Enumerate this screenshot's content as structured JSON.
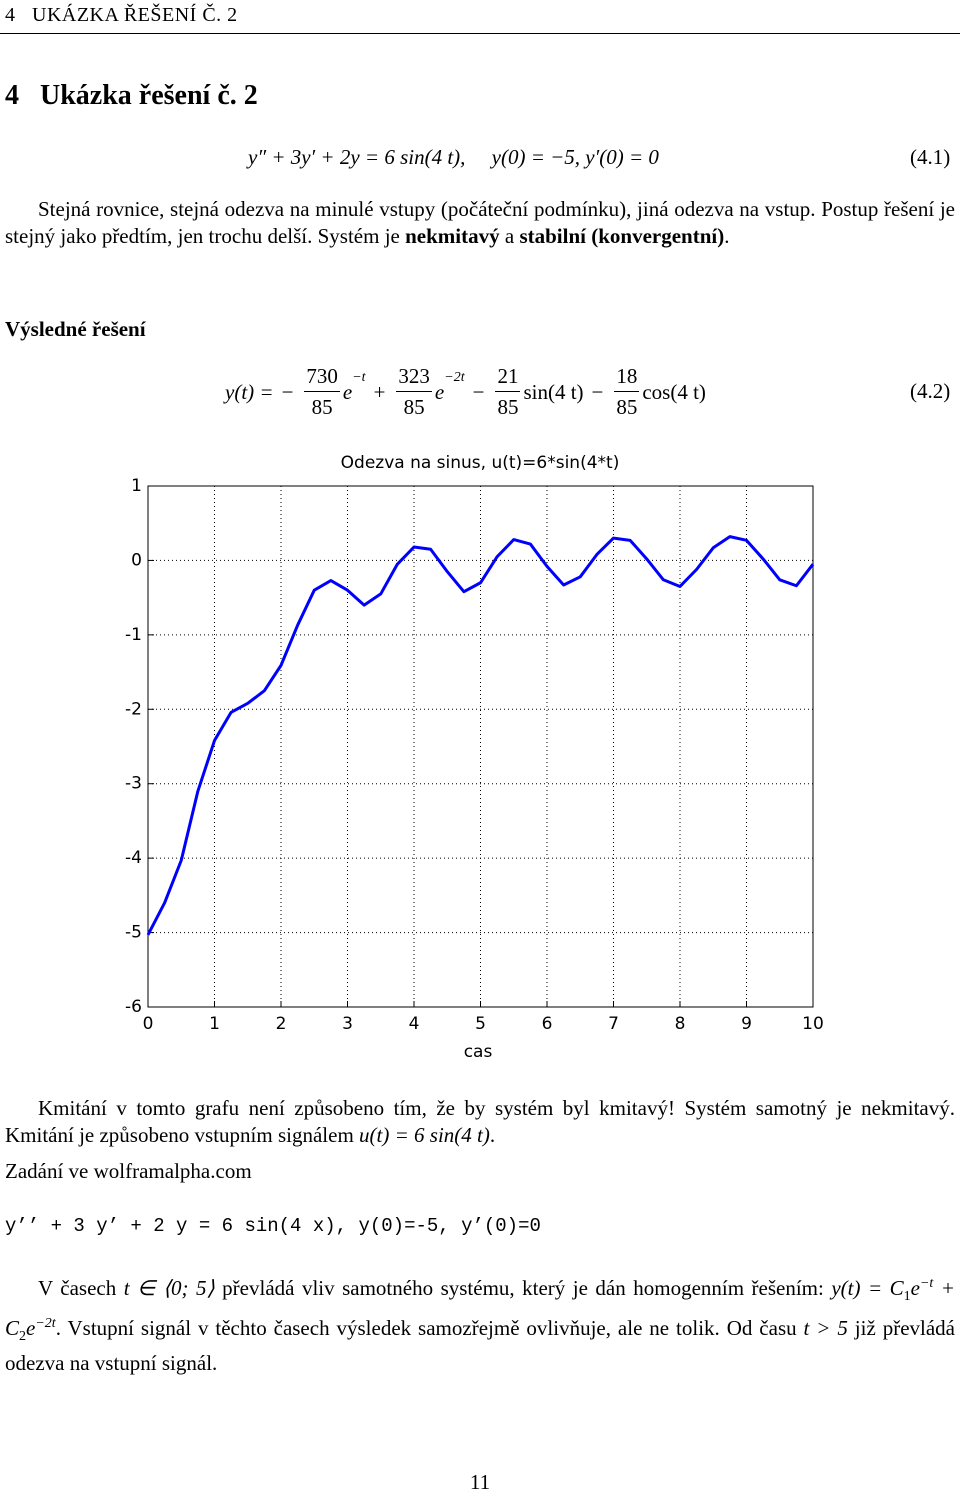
{
  "header": {
    "running_title": "4   UKÁZKA ŘEŠENÍ Č. 2",
    "section_title": "4   Ukázka řešení č. 2"
  },
  "equation_1": {
    "text": "y″ + 3y′ + 2y = 6 sin(4 t),     y(0) = −5, y′(0) = 0",
    "label": "(4.1)"
  },
  "paragraph_1": [
    "Stejná rovnice, stejná odezva na minulé vstupy (počáteční podmínku), jiná odezva na vstup. Postup řešení je stejný jako předtím, jen trochu delší. Systém je ",
    "nekmitavý",
    " a ",
    "stabilní (konvergentní)",
    "."
  ],
  "result_heading": "Výsledné řešení",
  "equation_2": {
    "lhs": "y(t) =",
    "terms": [
      {
        "sign": "−",
        "num": "730",
        "den": "85",
        "tail": "e",
        "exp": "−t"
      },
      {
        "sign": "+",
        "num": "323",
        "den": "85",
        "tail": "e",
        "exp": "−2t"
      },
      {
        "sign": "−",
        "num": "21",
        "den": "85",
        "tail": "sin(4 t)",
        "exp": ""
      },
      {
        "sign": "−",
        "num": "18",
        "den": "85",
        "tail": "cos(4 t)",
        "exp": ""
      }
    ],
    "label": "(4.2)"
  },
  "chart_data": {
    "type": "line",
    "title": "Odezva na sinus, u(t)=6*sin(4*t)",
    "x_label": "cas",
    "x": [
      0,
      0.25,
      0.5,
      0.75,
      1,
      1.25,
      1.5,
      1.75,
      2,
      2.25,
      2.5,
      2.75,
      3,
      3.25,
      3.5,
      3.75,
      4,
      4.25,
      4.5,
      4.75,
      5,
      5.25,
      5.5,
      5.75,
      6,
      6.25,
      6.5,
      6.75,
      7,
      7.25,
      7.5,
      7.75,
      8,
      8.25,
      8.5,
      8.75,
      9,
      9.25,
      9.5,
      9.75,
      10
    ],
    "series": [
      {
        "color": "#0000ff",
        "values": [
          -5.03,
          -4.6,
          -4.03,
          -3.1,
          -2.42,
          -2.04,
          -1.92,
          -1.75,
          -1.41,
          -0.87,
          -0.4,
          -0.27,
          -0.4,
          -0.6,
          -0.45,
          -0.05,
          0.18,
          0.15,
          -0.15,
          -0.42,
          -0.3,
          0.05,
          0.28,
          0.22,
          -0.08,
          -0.33,
          -0.22,
          0.08,
          0.3,
          0.27,
          0.02,
          -0.26,
          -0.35,
          -0.12,
          0.17,
          0.32,
          0.27,
          0.02,
          -0.26,
          -0.34,
          -0.05
        ]
      }
    ],
    "xlim": [
      0,
      10
    ],
    "xticks": [
      0,
      1,
      2,
      3,
      4,
      5,
      6,
      7,
      8,
      9,
      10
    ],
    "ylim": [
      -6,
      1
    ],
    "yticks": [
      -6,
      -5,
      -4,
      -3,
      -2,
      -1,
      0,
      1
    ],
    "grid": true
  },
  "paragraph_2": [
    "Kmitání v tomto grafu není způsobeno tím, že by systém byl kmitavý! Systém samotný je nekmitavý. Kmitání je způsobeno vstupním signálem ",
    "u(t) = 6 sin(4 t)",
    "."
  ],
  "source_line": "Zadání ve wolframalpha.com",
  "code_line": "y’’ + 3 y’ + 2 y = 6 sin(4 x), y(0)=-5, y’(0)=0",
  "paragraph_3": [
    "V časech ",
    "t ∈ ⟨0; 5⟩",
    " převládá vliv samotného systému, který je dán homogenním řešením: ",
    "y(t) = C",
    "1",
    "e",
    "−t",
    " + C",
    "2",
    "e",
    "−2t",
    ". Vstupní signál v těchto časech výsledek samozřejmě ovlivňuje, ale ne tolik. Od času ",
    "t > 5",
    " již převládá odezva na vstupní signál."
  ],
  "page_number": "11"
}
